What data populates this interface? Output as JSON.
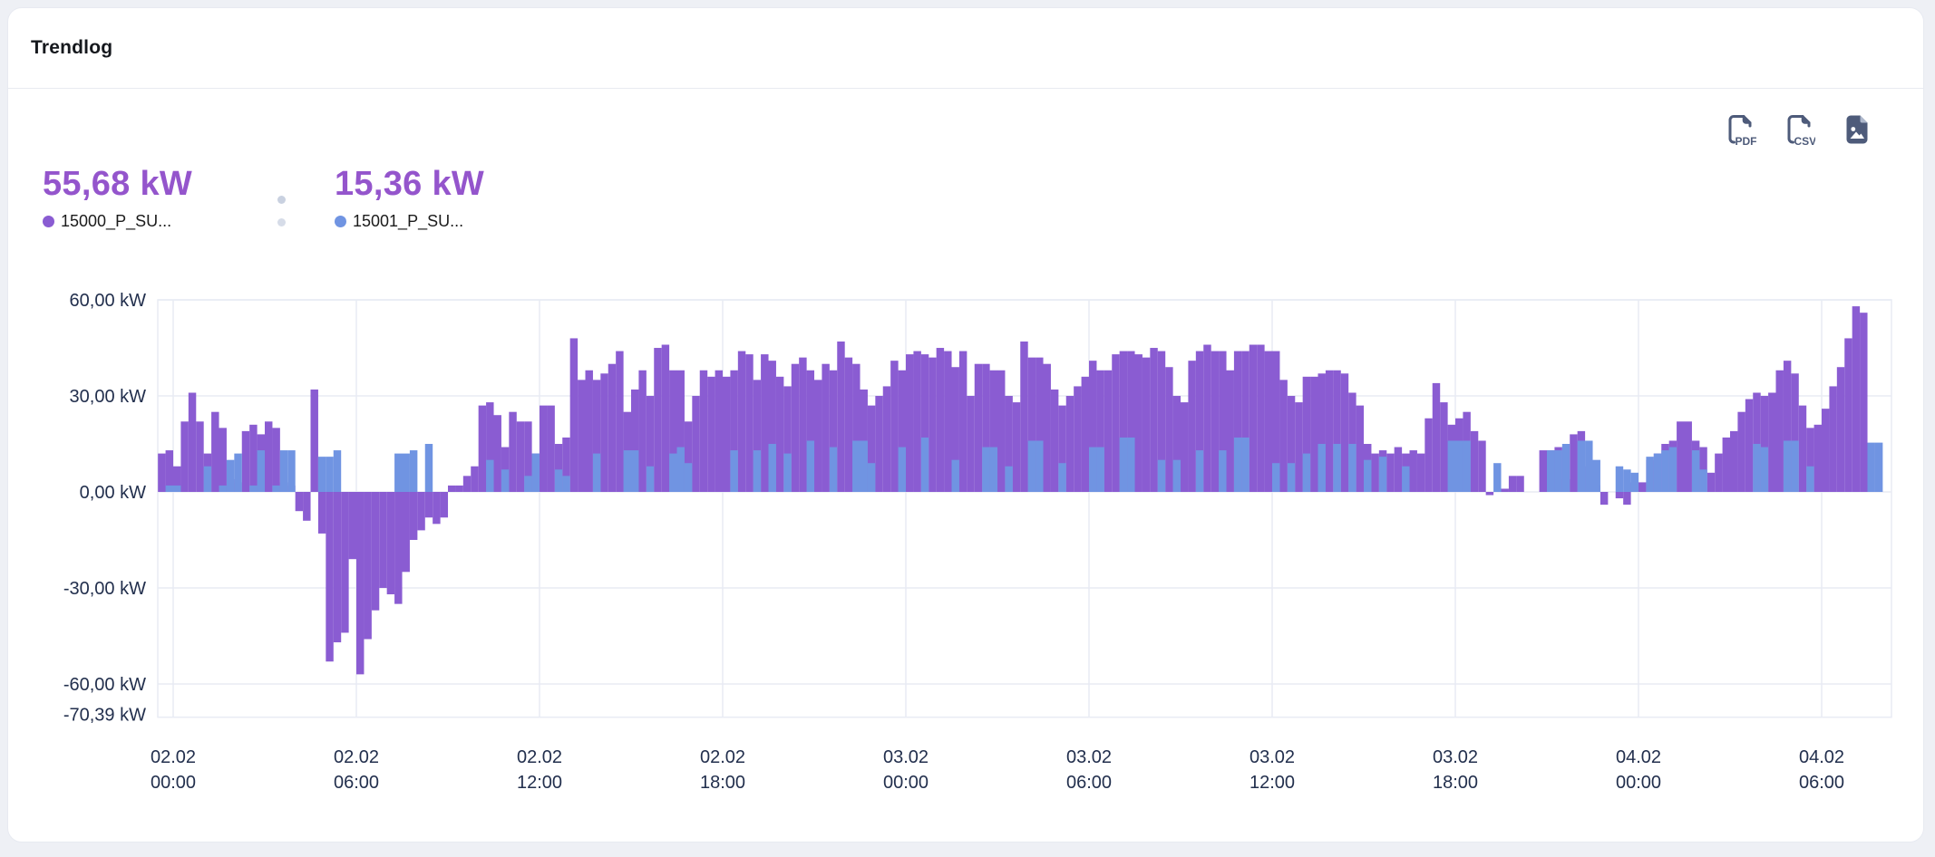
{
  "header": {
    "title": "Trendlog"
  },
  "metrics": [
    {
      "value": "55,68 kW",
      "label": "15000_P_SU...",
      "color": "#8a5cd2"
    },
    {
      "value": "15,36 kW",
      "label": "15001_P_SU...",
      "color": "#7094e2"
    }
  ],
  "toolbar": {
    "pdf_label": "PDF",
    "csv_label": "CSV",
    "icons": [
      "export-pdf-icon",
      "export-csv-icon",
      "export-image-icon"
    ]
  },
  "colors": {
    "page_bg": "#eef0f5",
    "card_bg": "#ffffff",
    "divider": "#e8ebf1",
    "grid": "#e8ebf4",
    "axis_text": "#222f4d",
    "metric_text": "#9455cc",
    "icon": "#4e5b7a",
    "series_purple": "#8a5cd2",
    "series_blue": "#7094e2",
    "separator_dot": "#c9d1e0"
  },
  "chart_data": {
    "type": "bar",
    "title": "",
    "xlabel": "",
    "ylabel": "",
    "unit": "kW",
    "grid": true,
    "legend_position": "top-left",
    "x_start": "01.02 23:30",
    "step_minutes": 15,
    "ylim": [
      -70.39,
      60
    ],
    "y_ticks": [
      {
        "v": 60,
        "label": "60,00 kW"
      },
      {
        "v": 30,
        "label": "30,00 kW"
      },
      {
        "v": 0,
        "label": "0,00 kW"
      },
      {
        "v": -30,
        "label": "-30,00 kW"
      },
      {
        "v": -60,
        "label": "-60,00 kW"
      },
      {
        "v": -70.39,
        "label": "-70,39 kW"
      }
    ],
    "x_ticks": [
      {
        "t": 0,
        "line1": "02.02",
        "line2": "00:00"
      },
      {
        "t": 360,
        "line1": "02.02",
        "line2": "06:00"
      },
      {
        "t": 720,
        "line1": "02.02",
        "line2": "12:00"
      },
      {
        "t": 1080,
        "line1": "02.02",
        "line2": "18:00"
      },
      {
        "t": 1440,
        "line1": "03.02",
        "line2": "00:00"
      },
      {
        "t": 1800,
        "line1": "03.02",
        "line2": "06:00"
      },
      {
        "t": 2160,
        "line1": "03.02",
        "line2": "12:00"
      },
      {
        "t": 2520,
        "line1": "03.02",
        "line2": "18:00"
      },
      {
        "t": 2880,
        "line1": "04.02",
        "line2": "00:00"
      },
      {
        "t": 3240,
        "line1": "04.02",
        "line2": "06:00"
      }
    ],
    "series": [
      {
        "name": "15000_P_SU...",
        "color": "#8a5cd2",
        "latest": "55,68 kW",
        "values": [
          12,
          13,
          8,
          22,
          31,
          22,
          12,
          25,
          20,
          4,
          3,
          19,
          21,
          18,
          22,
          20,
          3,
          2,
          -6,
          -9,
          32,
          -13,
          -53,
          -47,
          -44,
          -21,
          -57,
          -46,
          -37,
          -30,
          -32,
          -35,
          -25,
          -15,
          -12,
          -8,
          -10,
          -8,
          2,
          2,
          5,
          8,
          27,
          28,
          24,
          14,
          25,
          22,
          22,
          12,
          27,
          27,
          15,
          17,
          48,
          35,
          38,
          35,
          37,
          40,
          44,
          25,
          32,
          38,
          30,
          45,
          46,
          38,
          38,
          22,
          30,
          38,
          36,
          38,
          36,
          38,
          44,
          43,
          35,
          43,
          41,
          36,
          33,
          40,
          42,
          38,
          35,
          40,
          38,
          47,
          42,
          40,
          32,
          27,
          30,
          33,
          41,
          38,
          43,
          44,
          43,
          42,
          45,
          44,
          39,
          44,
          30,
          40,
          40,
          38,
          38,
          30,
          28,
          47,
          42,
          42,
          40,
          32,
          27,
          30,
          33,
          36,
          41,
          38,
          38,
          43,
          44,
          44,
          43,
          42,
          45,
          44,
          39,
          30,
          28,
          41,
          44,
          46,
          44,
          44,
          38,
          44,
          44,
          46,
          46,
          44,
          44,
          35,
          30,
          28,
          36,
          36,
          37,
          38,
          38,
          37,
          31,
          27,
          15,
          12,
          13,
          12,
          14,
          12,
          13,
          12,
          23,
          34,
          28,
          21,
          23,
          25,
          19,
          16,
          -1,
          0,
          1,
          5,
          5,
          0,
          0,
          13,
          13,
          14,
          4,
          18,
          19,
          8,
          2,
          -4,
          0,
          -2,
          -4,
          3,
          3,
          10,
          12,
          15,
          16,
          22,
          22,
          16,
          14,
          6,
          12,
          17,
          19,
          25,
          29,
          31,
          30,
          31,
          38,
          41,
          37,
          27,
          20,
          21,
          26,
          33,
          39,
          48,
          58,
          56,
          0,
          0
        ]
      },
      {
        "name": "15001_P_SU...",
        "color": "#7094e2",
        "latest": "15,36 kW",
        "values": [
          0,
          2,
          2,
          0,
          0,
          0,
          8,
          0,
          2,
          10,
          12,
          0,
          2,
          13,
          0,
          2,
          13,
          13,
          0,
          0,
          0,
          11,
          11,
          13,
          0,
          0,
          0,
          0,
          0,
          0,
          0,
          12,
          12,
          13,
          0,
          15,
          0,
          0,
          0,
          0,
          0,
          0,
          0,
          10,
          0,
          7,
          0,
          0,
          5,
          12,
          0,
          0,
          7,
          5,
          0,
          0,
          0,
          12,
          0,
          0,
          0,
          13,
          13,
          0,
          8,
          0,
          0,
          12,
          14,
          9,
          0,
          0,
          0,
          0,
          0,
          13,
          0,
          0,
          13,
          0,
          15,
          0,
          12,
          0,
          0,
          16,
          0,
          0,
          14,
          0,
          0,
          16,
          16,
          9,
          0,
          0,
          0,
          14,
          0,
          0,
          17,
          0,
          0,
          0,
          10,
          0,
          0,
          0,
          14,
          14,
          0,
          8,
          0,
          0,
          16,
          16,
          0,
          0,
          9,
          0,
          0,
          0,
          14,
          14,
          0,
          0,
          17,
          17,
          0,
          0,
          0,
          10,
          0,
          10,
          0,
          0,
          13,
          0,
          0,
          13,
          0,
          17,
          17,
          0,
          0,
          0,
          9,
          0,
          9,
          0,
          12,
          0,
          15,
          0,
          15,
          0,
          15,
          0,
          10,
          0,
          11,
          0,
          0,
          8,
          0,
          0,
          0,
          0,
          0,
          16,
          16,
          16,
          0,
          0,
          0,
          9,
          0,
          0,
          0,
          0,
          0,
          0,
          13,
          13,
          15,
          0,
          16,
          16,
          10,
          0,
          0,
          8,
          7,
          6,
          0,
          11,
          12,
          13,
          14,
          0,
          0,
          13,
          7,
          0,
          0,
          0,
          0,
          0,
          0,
          15,
          14,
          0,
          0,
          16,
          16,
          0,
          8,
          0,
          0,
          0,
          0,
          0,
          0,
          0,
          15.4,
          15.4
        ]
      }
    ]
  }
}
